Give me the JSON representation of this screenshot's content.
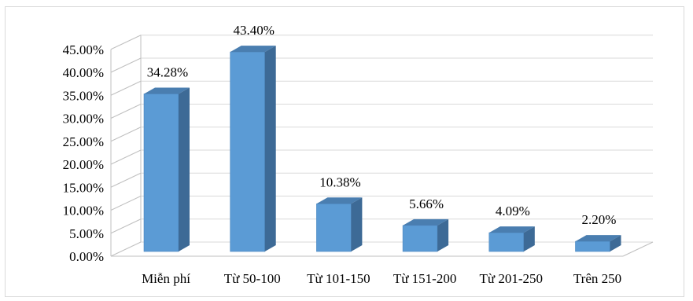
{
  "chart_data": {
    "type": "bar",
    "style": "3d-column",
    "categories": [
      "Miễn phí",
      "Từ 50-100",
      "Từ 101-150",
      "Từ 151-200",
      "Từ 201-250",
      "Trên 250"
    ],
    "values": [
      34.28,
      43.4,
      10.38,
      5.66,
      4.09,
      2.2
    ],
    "data_labels": [
      "34.28%",
      "43.40%",
      "10.38%",
      "5.66%",
      "4.09%",
      "2.20%"
    ],
    "y_ticks": [
      0,
      5,
      10,
      15,
      20,
      25,
      30,
      35,
      40,
      45
    ],
    "y_tick_labels": [
      "0.00%",
      "5.00%",
      "10.00%",
      "15.00%",
      "20.00%",
      "25.00%",
      "30.00%",
      "35.00%",
      "40.00%",
      "45.00%"
    ],
    "ylim": [
      0,
      45
    ],
    "grid": true,
    "legend": "none",
    "colors": {
      "front": "#5b9bd5",
      "top": "#4a7eb0",
      "side": "#3d6a96",
      "grid": "#d9d9d9",
      "wall": "#bfbfbf"
    }
  }
}
